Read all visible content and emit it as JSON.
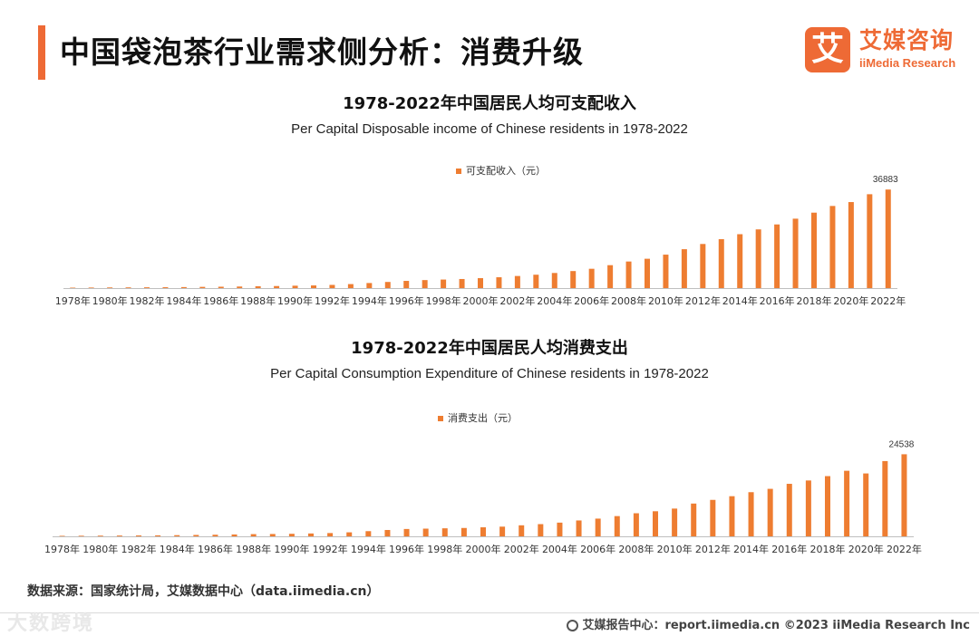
{
  "header": {
    "title": "中国袋泡茶行业需求侧分析：消费升级",
    "logo_mark": "艾",
    "logo_cn": "艾媒咨询",
    "logo_en": "iiMedia Research"
  },
  "chart_data": [
    {
      "type": "bar",
      "title": "1978-2022年中国居民人均可支配收入",
      "subtitle": "Per Capital Disposable income of Chinese residents in 1978-2022",
      "legend": "可支配收入（元）",
      "color": "#ee7d31",
      "x": [
        1978,
        1979,
        1980,
        1981,
        1982,
        1983,
        1984,
        1985,
        1986,
        1987,
        1988,
        1989,
        1990,
        1991,
        1992,
        1993,
        1994,
        1995,
        1996,
        1997,
        1998,
        1999,
        2000,
        2001,
        2002,
        2003,
        2004,
        2005,
        2006,
        2007,
        2008,
        2009,
        2010,
        2011,
        2012,
        2013,
        2014,
        2015,
        2016,
        2017,
        2018,
        2019,
        2020,
        2021,
        2022
      ],
      "tick_labels": [
        "1978年",
        "1980年",
        "1982年",
        "1984年",
        "1986年",
        "1988年",
        "1990年",
        "1992年",
        "1994年",
        "1996年",
        "1998年",
        "2000年",
        "2002年",
        "2004年",
        "2006年",
        "2008年",
        "2010年",
        "2012年",
        "2014年",
        "2016年",
        "2018年",
        "2020年",
        "2022年"
      ],
      "values": [
        171,
        212,
        247,
        270,
        301,
        330,
        380,
        460,
        520,
        590,
        690,
        770,
        900,
        1000,
        1200,
        1500,
        1900,
        2300,
        2700,
        3000,
        3200,
        3400,
        3720,
        4060,
        4530,
        5010,
        5660,
        6380,
        7230,
        8580,
        9950,
        10980,
        12520,
        14550,
        16510,
        18311,
        20167,
        21966,
        23821,
        25974,
        28228,
        30733,
        32189,
        35128,
        36883
      ],
      "data_labels": [
        {
          "index": 44,
          "text": "36883"
        }
      ],
      "ylim": [
        0,
        40000
      ]
    },
    {
      "type": "bar",
      "title": "1978-2022年中国居民人均消费支出",
      "subtitle": "Per Capital Consumption Expenditure of Chinese residents in 1978-2022",
      "legend": "消费支出（元）",
      "color": "#ee7d31",
      "x": [
        1978,
        1979,
        1980,
        1981,
        1982,
        1983,
        1984,
        1985,
        1986,
        1987,
        1988,
        1989,
        1990,
        1991,
        1992,
        1993,
        1994,
        1995,
        1996,
        1997,
        1998,
        1999,
        2000,
        2001,
        2002,
        2003,
        2004,
        2005,
        2006,
        2007,
        2008,
        2009,
        2010,
        2011,
        2012,
        2013,
        2014,
        2015,
        2016,
        2017,
        2018,
        2019,
        2020,
        2021,
        2022
      ],
      "tick_labels": [
        "1978年",
        "1980年",
        "1982年",
        "1984年",
        "1986年",
        "1988年",
        "1990年",
        "1992年",
        "1994年",
        "1996年",
        "1998年",
        "2000年",
        "2002年",
        "2004年",
        "2006年",
        "2008年",
        "2010年",
        "2012年",
        "2014年",
        "2016年",
        "2018年",
        "2020年",
        "2022年"
      ],
      "values": [
        150,
        180,
        210,
        240,
        270,
        300,
        350,
        420,
        480,
        560,
        660,
        700,
        760,
        860,
        980,
        1200,
        1550,
        1900,
        2200,
        2300,
        2400,
        2500,
        2700,
        2900,
        3300,
        3650,
        4100,
        4750,
        5300,
        6050,
        6900,
        7500,
        8300,
        9800,
        10900,
        12000,
        13200,
        14200,
        15700,
        16700,
        18000,
        19600,
        18800,
        22500,
        24538
      ],
      "data_labels": [
        {
          "index": 44,
          "text": "24538"
        }
      ],
      "ylim": [
        0,
        26000
      ]
    }
  ],
  "footer": {
    "source": "数据来源：国家统计局，艾媒数据中心（data.iimedia.cn）",
    "credit": "艾媒报告中心：report.iimedia.cn  ©2023  iiMedia Research  Inc",
    "watermark": "大数跨境"
  }
}
